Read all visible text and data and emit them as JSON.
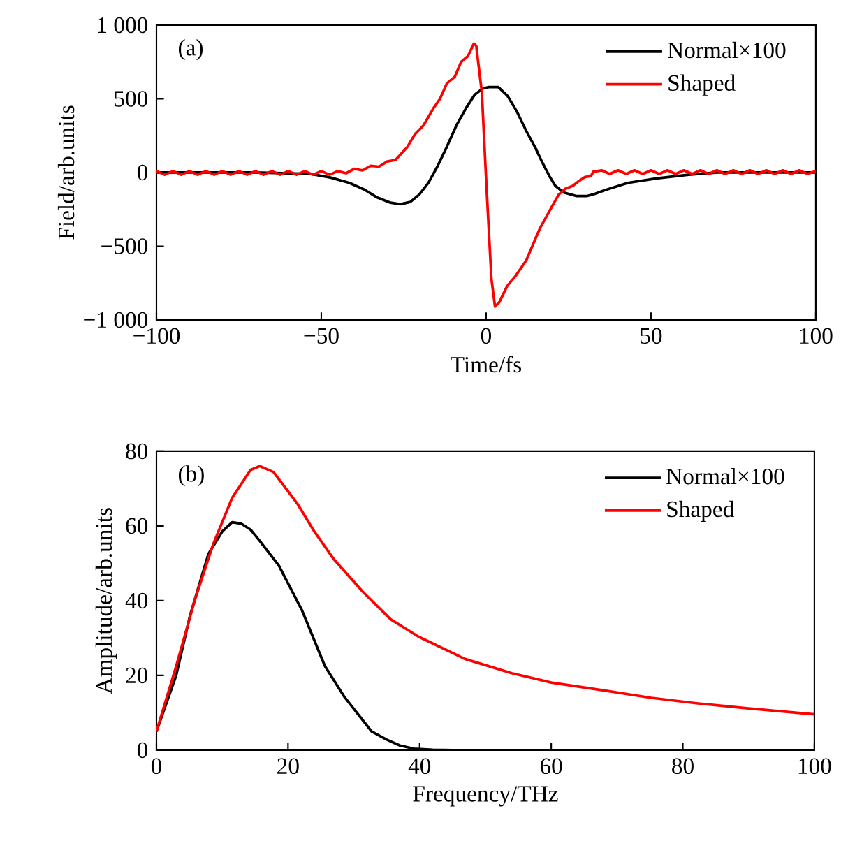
{
  "chart_data": [
    {
      "type": "line",
      "xlabel": "Time/fs",
      "ylabel": "Field/arb.units",
      "annotations": [
        "(a)"
      ],
      "legend": "top right",
      "xlim": [
        -100,
        100
      ],
      "ylim": [
        -1000,
        1000
      ],
      "xticks": [
        {
          "value": -100,
          "label": "−100"
        },
        {
          "value": -50,
          "label": "−50"
        },
        0,
        50,
        100
      ],
      "yticks": [
        {
          "value": -1000,
          "label": "−1 000"
        },
        {
          "value": -500,
          "label": "−500"
        },
        0,
        500,
        {
          "value": 1000,
          "label": "1 000"
        }
      ],
      "series": [
        {
          "name": "Normal×100",
          "color": "#000000",
          "x": [
            -100,
            -70,
            -60,
            -53,
            -47,
            -41.5,
            -37,
            -33,
            -29,
            -26,
            -23,
            -20.3,
            -17.5,
            -14.8,
            -12,
            -9,
            -6,
            -3.4,
            -1,
            0.8,
            3.7,
            6.5,
            9.3,
            12,
            15,
            17,
            19.2,
            21,
            23.5,
            27.5,
            30.5,
            33,
            36,
            43,
            51.7,
            61.4,
            70,
            100
          ],
          "values": [
            0,
            0,
            -5,
            -10,
            -35,
            -70,
            -115,
            -170,
            -205,
            -215,
            -200,
            -150,
            -70,
            40,
            170,
            320,
            440,
            530,
            570,
            580,
            580,
            520,
            415,
            290,
            165,
            70,
            -25,
            -90,
            -135,
            -160,
            -160,
            -145,
            -120,
            -70,
            -40,
            -15,
            0,
            0
          ]
        },
        {
          "name": "Shaped",
          "color": "#ff0000",
          "x": [
            -100,
            -97.5,
            -95,
            -92.5,
            -90,
            -87.5,
            -85,
            -82.5,
            -80,
            -77.5,
            -75,
            -72.5,
            -70,
            -67.5,
            -65,
            -62.5,
            -60,
            -57.5,
            -55,
            -52.5,
            -50,
            -47.5,
            -45,
            -42.5,
            -40,
            -37.5,
            -35,
            -32.5,
            -30,
            -27.5,
            -24,
            -21.6,
            -19,
            -16,
            -14,
            -11.9,
            -9.5,
            -7.6,
            -5.5,
            -3.7,
            -3,
            -1.3,
            0.1,
            1.6,
            2.7,
            4,
            6.4,
            9,
            12.2,
            14,
            16.4,
            19,
            22,
            24,
            26.3,
            28,
            30,
            31.8,
            32.5,
            35,
            37.5,
            40,
            42.5,
            45,
            47.5,
            50,
            52.5,
            55,
            57.5,
            60,
            62.5,
            65,
            67.5,
            70,
            72.5,
            75,
            77.5,
            80,
            82.5,
            85,
            87.5,
            90,
            92.5,
            95,
            97.5,
            100
          ],
          "values": [
            10,
            -15,
            10,
            -15,
            10,
            -15,
            10,
            -15,
            10,
            -15,
            10,
            -15,
            10,
            -15,
            10,
            -15,
            10,
            -15,
            10,
            -15,
            10,
            -15,
            10,
            -5,
            25,
            15,
            45,
            40,
            75,
            85,
            170,
            260,
            320,
            435,
            500,
            605,
            650,
            750,
            790,
            875,
            860,
            545,
            -90,
            -720,
            -910,
            -880,
            -770,
            -700,
            -595,
            -500,
            -375,
            -270,
            -150,
            -110,
            -90,
            -60,
            -30,
            -25,
            5,
            15,
            -10,
            15,
            -10,
            15,
            -10,
            15,
            -10,
            15,
            -10,
            15,
            -10,
            15,
            -10,
            15,
            -10,
            15,
            -10,
            15,
            -10,
            15,
            -10,
            15,
            -10,
            15,
            -10,
            10
          ]
        }
      ]
    },
    {
      "type": "line",
      "xlabel": "Frequency/THz",
      "ylabel": "Amplitude/arb.units",
      "annotations": [
        "(b)"
      ],
      "legend": "top right",
      "xlim": [
        0,
        100
      ],
      "ylim": [
        0,
        80
      ],
      "xticks": [
        0,
        20,
        40,
        60,
        80,
        100
      ],
      "yticks": [
        0,
        20,
        40,
        60,
        80
      ],
      "series": [
        {
          "name": "Normal×100",
          "color": "#000000",
          "x": [
            0,
            3,
            5.1,
            7.9,
            10,
            11.5,
            12.9,
            14.3,
            15.7,
            18.6,
            22.1,
            25.6,
            28.5,
            32.7,
            35,
            37,
            39.1,
            42,
            45,
            60,
            80,
            100
          ],
          "values": [
            5,
            20,
            36,
            52.5,
            58.5,
            61,
            60.6,
            59,
            56,
            49.4,
            37.5,
            22.5,
            14.4,
            5,
            2.8,
            1.25,
            0.4,
            0.1,
            0,
            0,
            0,
            0
          ]
        },
        {
          "name": "Shaped",
          "color": "#ff0000",
          "x": [
            0,
            3,
            5.8,
            8.6,
            11.5,
            14.3,
            15.7,
            17.8,
            21.4,
            24,
            27,
            31.3,
            35.6,
            39.8,
            46.9,
            54,
            60,
            68,
            75.2,
            82.3,
            89.4,
            100
          ],
          "values": [
            5,
            22.5,
            40,
            55,
            67.5,
            75,
            76,
            74.4,
            66,
            58.5,
            51,
            42.5,
            35,
            30.4,
            24.4,
            20.6,
            18.1,
            16,
            14,
            12.5,
            11.25,
            9.6
          ]
        }
      ]
    }
  ]
}
